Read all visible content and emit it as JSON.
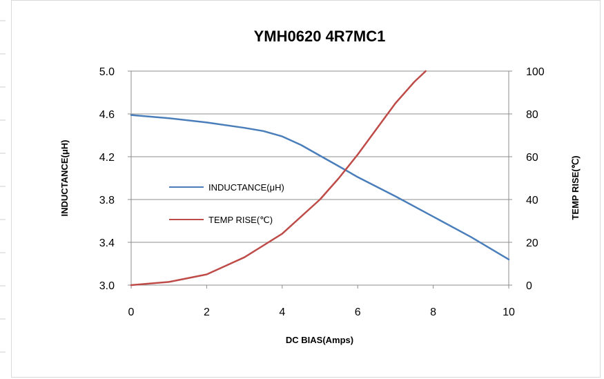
{
  "chart_data": {
    "type": "line",
    "title": "YMH0620 4R7MC1",
    "xlabel": "DC BIAS(Amps)",
    "ylabel": "INDUCTANCE(μH)",
    "y2label": "TEMP RISE(℃)",
    "xlim": [
      0,
      10
    ],
    "ylim": [
      3.0,
      5.0
    ],
    "y2lim": [
      0,
      100
    ],
    "x_ticks": [
      "0",
      "2",
      "4",
      "6",
      "8",
      "10"
    ],
    "y_ticks": [
      "3.0",
      "3.4",
      "3.8",
      "4.2",
      "4.6",
      "5.0"
    ],
    "y2_ticks": [
      "0",
      "20",
      "40",
      "60",
      "80",
      "100"
    ],
    "grid": true,
    "legend_position": "center-left",
    "series": [
      {
        "name": "INDUCTANCE(μH)",
        "axis": "left",
        "color": "#4a7ebb",
        "x": [
          0,
          1,
          2,
          3,
          3.5,
          4,
          4.5,
          5,
          5.5,
          6,
          7,
          8,
          9,
          10
        ],
        "values": [
          4.59,
          4.56,
          4.52,
          4.47,
          4.44,
          4.39,
          4.31,
          4.21,
          4.11,
          4.01,
          3.83,
          3.64,
          3.45,
          3.24
        ]
      },
      {
        "name": "TEMP RISE(℃)",
        "axis": "right",
        "color": "#be4b48",
        "x": [
          0,
          1,
          2,
          3,
          4,
          5,
          5.5,
          6,
          6.5,
          7,
          7.5,
          7.8
        ],
        "values": [
          0,
          1.5,
          5,
          13,
          24,
          40,
          50,
          61,
          73,
          85,
          95,
          100
        ]
      }
    ]
  }
}
